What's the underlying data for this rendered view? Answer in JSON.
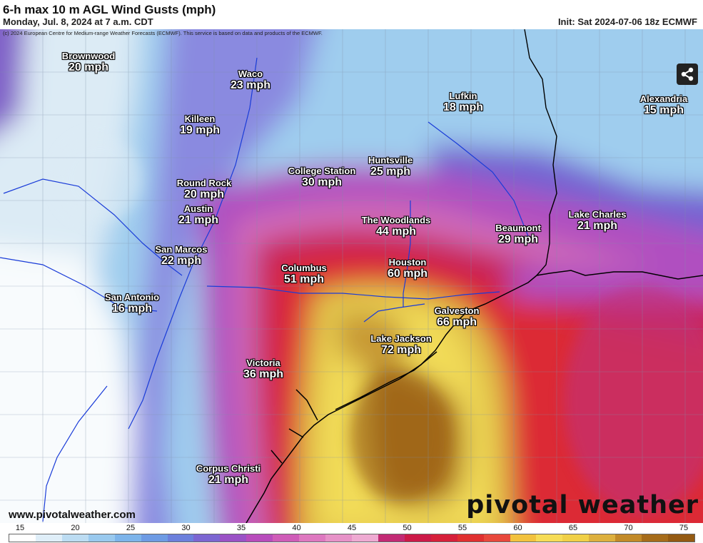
{
  "header": {
    "title": "6-h max 10 m AGL Wind Gusts (mph)",
    "subtitle": "Monday, Jul. 8, 2024 at 7 a.m. CDT",
    "init": "Init: Sat 2024-07-06 18z ECMWF",
    "copyright": "(c) 2024 European Centre for Medium-range Weather Forecasts (ECMWF). This service is based on data and products of the ECMWF."
  },
  "cities": [
    {
      "name": "Brownwood",
      "value": "20 mph"
    },
    {
      "name": "Waco",
      "value": "23 mph"
    },
    {
      "name": "Lufkin",
      "value": "18 mph"
    },
    {
      "name": "Alexandria",
      "value": "15 mph"
    },
    {
      "name": "Killeen",
      "value": "19 mph"
    },
    {
      "name": "Huntsville",
      "value": "25 mph"
    },
    {
      "name": "College Station",
      "value": "30 mph"
    },
    {
      "name": "Round Rock",
      "value": "20 mph"
    },
    {
      "name": "Austin",
      "value": "21 mph"
    },
    {
      "name": "The Woodlands",
      "value": "44 mph"
    },
    {
      "name": "Lake Charles",
      "value": "21 mph"
    },
    {
      "name": "Beaumont",
      "value": "29 mph"
    },
    {
      "name": "San Marcos",
      "value": "22 mph"
    },
    {
      "name": "Houston",
      "value": "60 mph"
    },
    {
      "name": "Columbus",
      "value": "51 mph"
    },
    {
      "name": "San Antonio",
      "value": "16 mph"
    },
    {
      "name": "Galveston",
      "value": "66 mph"
    },
    {
      "name": "Lake Jackson",
      "value": "72 mph"
    },
    {
      "name": "Victoria",
      "value": "36 mph"
    },
    {
      "name": "Corpus Christi",
      "value": "21 mph"
    }
  ],
  "footer": {
    "website": "www.pivotalweather.com",
    "brand": "pivotal weather"
  },
  "colorbar": {
    "ticks": [
      "15",
      "20",
      "25",
      "30",
      "35",
      "40",
      "45",
      "50",
      "55",
      "60",
      "65",
      "70",
      "75"
    ],
    "colors": [
      "#ffffff",
      "#dfeef8",
      "#bcdcf2",
      "#99c9ee",
      "#7db4ea",
      "#6e9be4",
      "#6c80dc",
      "#7c66d2",
      "#9a52c6",
      "#b84cbc",
      "#cf5cb8",
      "#de78c0",
      "#e792c8",
      "#eeaad2",
      "#c22a74",
      "#cc1a48",
      "#d6203a",
      "#e03030",
      "#e8483c",
      "#f2c23e",
      "#f6dc56",
      "#f0d047",
      "#ddb03e",
      "#c28a28",
      "#a66c1a",
      "#945a12"
    ]
  },
  "icons": {
    "share": "share-icon"
  }
}
